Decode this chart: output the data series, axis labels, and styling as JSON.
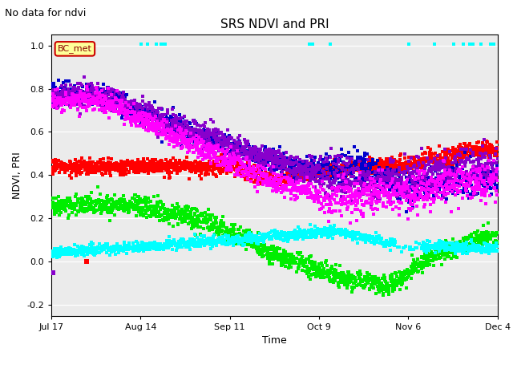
{
  "title": "SRS NDVI and PRI",
  "suptitle": "No data for ndvi",
  "xlabel": "Time",
  "ylabel": "NDVI, PRI",
  "ylim": [
    -0.25,
    1.05
  ],
  "xlim_days": [
    0,
    140
  ],
  "colors": {
    "SRS_NDVI": "#00ee00",
    "SRS_PRI": "#ff0000",
    "Arable_NDVI": "#0000cc",
    "fPAR": "#00ffff",
    "SW-PAR NDVI": "#8800cc",
    "Apogee NDVI": "#ff00ff"
  },
  "xtick_labels": [
    "Jul 17",
    "Aug 14",
    "Sep 11",
    "Oct 9",
    "Nov 6",
    "Dec 4"
  ],
  "xtick_positions": [
    0,
    28,
    56,
    84,
    112,
    140
  ],
  "ytick_labels": [
    "-0.2",
    "0.0",
    "0.2",
    "0.4",
    "0.6",
    "0.8",
    "1.0"
  ],
  "ytick_values": [
    -0.2,
    0.0,
    0.2,
    0.4,
    0.6,
    0.8,
    1.0
  ],
  "bc_met_box_color": "#ffff99",
  "bc_met_border_color": "#cc0000",
  "inner_background_color": "#ebebeb"
}
